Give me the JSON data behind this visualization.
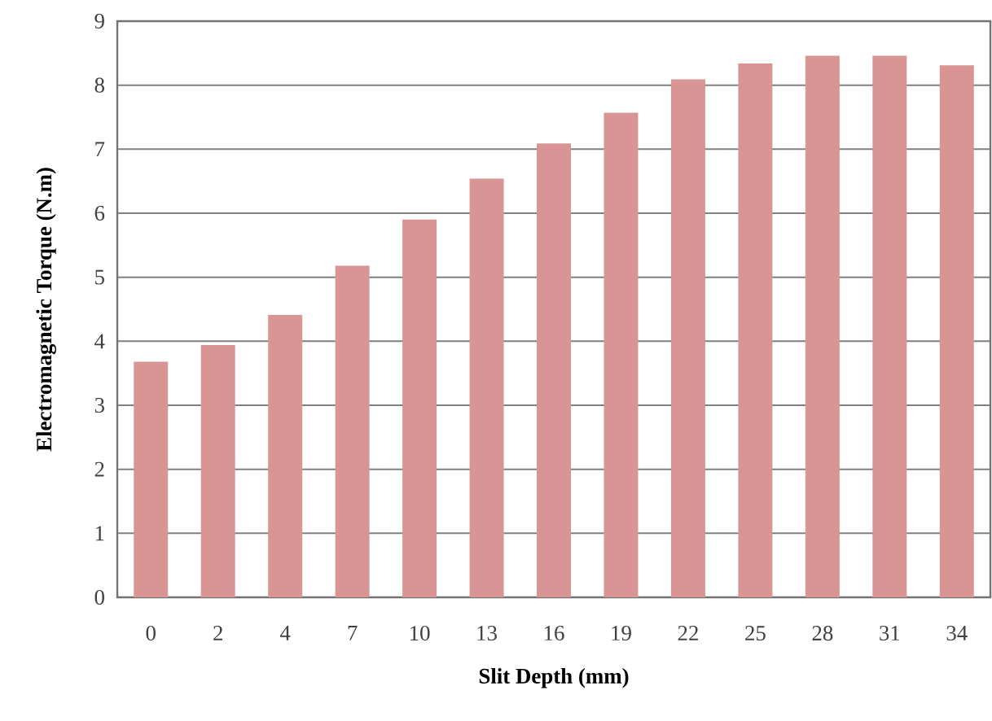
{
  "chart_data": {
    "type": "bar",
    "xlabel": "Slit Depth (mm)",
    "ylabel": "Electromagnetic Torque (N.m)",
    "categories": [
      "0",
      "2",
      "4",
      "7",
      "10",
      "13",
      "16",
      "19",
      "22",
      "25",
      "28",
      "31",
      "34"
    ],
    "values": [
      3.68,
      3.94,
      4.41,
      5.18,
      5.9,
      6.54,
      7.09,
      7.57,
      8.09,
      8.34,
      8.46,
      8.46,
      8.31
    ],
    "color": "#d99594",
    "ylim": [
      0,
      9
    ],
    "yticks": [
      0,
      1,
      2,
      3,
      4,
      5,
      6,
      7,
      8,
      9
    ],
    "grid": "y"
  }
}
